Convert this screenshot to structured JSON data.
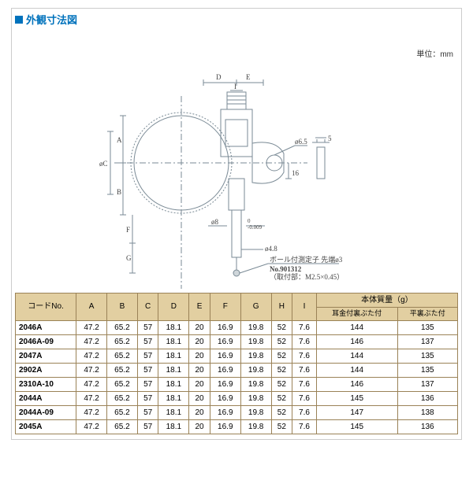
{
  "title": "外観寸法図",
  "unit_label": "単位：mm",
  "diagram": {
    "type": "diagram",
    "labels": {
      "D": "D",
      "E": "E",
      "A": "A",
      "C": "øC",
      "B": "B",
      "F": "F",
      "G": "G",
      "phi65": "ø6.5",
      "r16": "16",
      "h5": "5",
      "phi8_0_0009": "ø8",
      "tol": "0\n-0.009",
      "phi48": "ø4.8",
      "note1": "ボール付測定子 先端ø3",
      "note2": "No.901312",
      "note3": "（取付部：M2.5×0.45）"
    },
    "colors": {
      "line": "#7a8a95",
      "text": "#444",
      "bg": "#ffffff"
    }
  },
  "table": {
    "header_top": {
      "mass_group": "本体質量（g）"
    },
    "columns": [
      "コードNo.",
      "A",
      "B",
      "C",
      "D",
      "E",
      "F",
      "G",
      "H",
      "I",
      "耳金付裏ぶた付",
      "平裏ぶた付"
    ],
    "rows": [
      [
        "2046A",
        "47.2",
        "65.2",
        "57",
        "18.1",
        "20",
        "16.9",
        "19.8",
        "52",
        "7.6",
        "144",
        "135"
      ],
      [
        "2046A-09",
        "47.2",
        "65.2",
        "57",
        "18.1",
        "20",
        "16.9",
        "19.8",
        "52",
        "7.6",
        "146",
        "137"
      ],
      [
        "2047A",
        "47.2",
        "65.2",
        "57",
        "18.1",
        "20",
        "16.9",
        "19.8",
        "52",
        "7.6",
        "144",
        "135"
      ],
      [
        "2902A",
        "47.2",
        "65.2",
        "57",
        "18.1",
        "20",
        "16.9",
        "19.8",
        "52",
        "7.6",
        "144",
        "135"
      ],
      [
        "2310A-10",
        "47.2",
        "65.2",
        "57",
        "18.1",
        "20",
        "16.9",
        "19.8",
        "52",
        "7.6",
        "146",
        "137"
      ],
      [
        "2044A",
        "47.2",
        "65.2",
        "57",
        "18.1",
        "20",
        "16.9",
        "19.8",
        "52",
        "7.6",
        "145",
        "136"
      ],
      [
        "2044A-09",
        "47.2",
        "65.2",
        "57",
        "18.1",
        "20",
        "16.9",
        "19.8",
        "52",
        "7.6",
        "147",
        "138"
      ],
      [
        "2045A",
        "47.2",
        "65.2",
        "57",
        "18.1",
        "20",
        "16.9",
        "19.8",
        "52",
        "7.6",
        "145",
        "136"
      ]
    ],
    "colors": {
      "border": "#9a8257",
      "header_bg": "#e2cfa1",
      "text": "#333"
    }
  }
}
